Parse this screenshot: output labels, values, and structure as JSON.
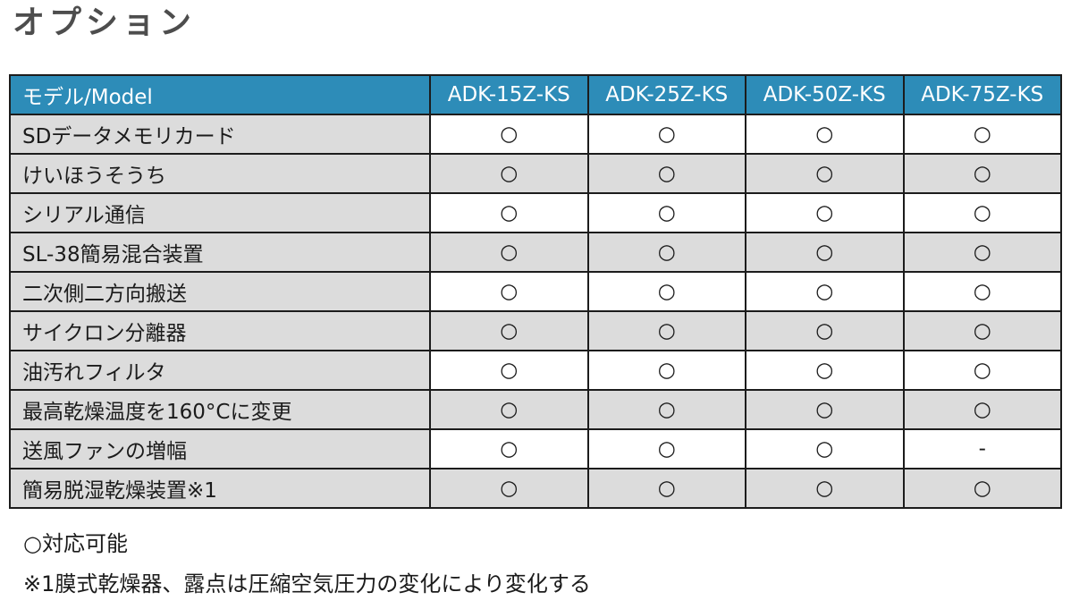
{
  "page_title": "オプション",
  "colors": {
    "header_bg": "#2d8cb8",
    "header_text": "#ffffff",
    "row_alt_bg": "#dcdcdc",
    "row_bg": "#ffffff",
    "border": "#1c1c1c",
    "title_text": "#4d4d4d",
    "body_text": "#1b1b1b"
  },
  "table": {
    "header": [
      "モデル/Model",
      "ADK-15Z-KS",
      "ADK-25Z-KS",
      "ADK-50Z-KS",
      "ADK-75Z-KS"
    ],
    "rows": [
      {
        "label": "SDデータメモリカード",
        "cells": [
          "○",
          "○",
          "○",
          "○"
        ]
      },
      {
        "label": "けいほうそうち",
        "cells": [
          "○",
          "○",
          "○",
          "○"
        ]
      },
      {
        "label": "シリアル通信",
        "cells": [
          "○",
          "○",
          "○",
          "○"
        ]
      },
      {
        "label": "SL-38簡易混合装置",
        "cells": [
          "○",
          "○",
          "○",
          "○"
        ]
      },
      {
        "label": "二次側二方向搬送",
        "cells": [
          "○",
          "○",
          "○",
          "○"
        ]
      },
      {
        "label": "サイクロン分離器",
        "cells": [
          "○",
          "○",
          "○",
          "○"
        ]
      },
      {
        "label": "油汚れフィルタ",
        "cells": [
          "○",
          "○",
          "○",
          "○"
        ]
      },
      {
        "label": "最高乾燥温度を160°Cに変更",
        "cells": [
          "○",
          "○",
          "○",
          "○"
        ]
      },
      {
        "label": "送風ファンの増幅",
        "cells": [
          "○",
          "○",
          "○",
          "-"
        ]
      },
      {
        "label": "簡易脱湿乾燥装置※1",
        "cells": [
          "○",
          "○",
          "○",
          "○"
        ]
      }
    ]
  },
  "notes": [
    "○対応可能",
    "※1膜式乾燥器、露点は圧縮空気圧力の変化により変化する"
  ]
}
